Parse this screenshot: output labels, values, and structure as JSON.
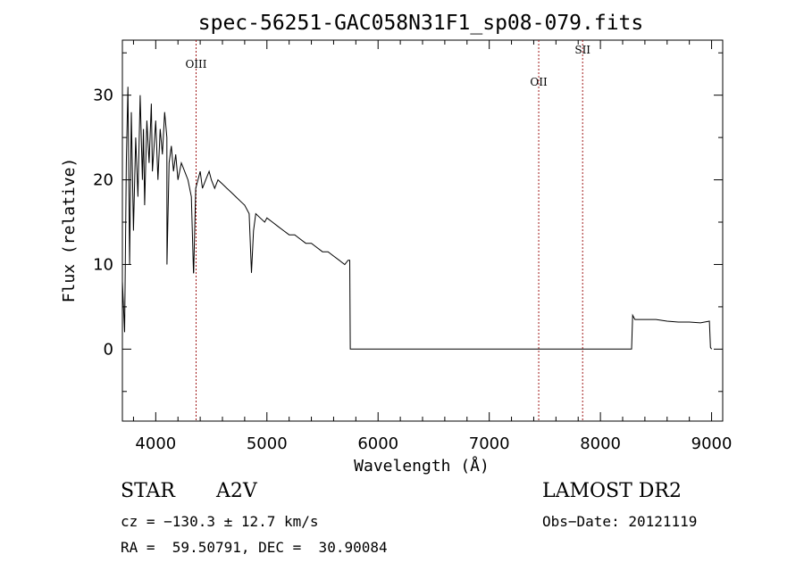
{
  "chart_data": {
    "type": "line",
    "title": "spec-56251-GAC058N31F1_sp08-079.fits",
    "xlabel": "Wavelength (Å)",
    "ylabel": "Flux (relative)",
    "xlim": [
      3700,
      9100
    ],
    "ylim": [
      -8.5,
      36.5
    ],
    "xticks": [
      4000,
      5000,
      6000,
      7000,
      8000,
      9000
    ],
    "yticks": [
      0,
      10,
      20,
      30
    ],
    "grid": false,
    "series": [
      {
        "x": [
          3700,
          3720,
          3735,
          3750,
          3765,
          3780,
          3800,
          3820,
          3840,
          3860,
          3880,
          3890,
          3900,
          3920,
          3940,
          3960,
          3970,
          3985,
          4000,
          4020,
          4040,
          4060,
          4080,
          4100,
          4101,
          4120,
          4140,
          4160,
          4180,
          4200,
          4230,
          4260,
          4290,
          4320,
          4340,
          4341,
          4360,
          4380,
          4400,
          4420,
          4450,
          4480,
          4500,
          4530,
          4560,
          4600,
          4640,
          4680,
          4720,
          4760,
          4800,
          4840,
          4861,
          4880,
          4900,
          4940,
          4980,
          5000,
          5050,
          5100,
          5150,
          5200,
          5250,
          5300,
          5350,
          5400,
          5450,
          5500,
          5550,
          5600,
          5650,
          5700,
          5730,
          5745,
          5750,
          6000,
          6500,
          7000,
          7200,
          7250,
          7400,
          7600,
          7800,
          8000,
          8200,
          8280,
          8290,
          8310,
          8400,
          8500,
          8600,
          8700,
          8800,
          8900,
          8980,
          8990,
          9000
        ],
        "y": [
          8,
          2,
          22,
          31,
          10,
          28,
          14,
          25,
          18,
          30,
          20,
          26,
          17,
          27,
          22,
          29,
          21,
          24,
          27,
          20,
          26,
          23,
          28,
          25,
          10,
          22,
          24,
          21,
          23,
          20,
          22,
          21,
          20,
          18,
          9,
          9,
          19,
          20,
          21,
          19,
          20,
          21,
          20,
          19,
          20,
          19.5,
          19,
          18.5,
          18,
          17.5,
          17,
          16,
          9,
          14,
          16,
          15.5,
          15,
          15.5,
          15,
          14.5,
          14,
          13.5,
          13.5,
          13,
          12.5,
          12.5,
          12,
          11.5,
          11.5,
          11,
          10.5,
          10,
          10.5,
          10.5,
          0,
          0,
          0,
          0,
          0,
          0,
          0,
          0,
          0,
          0,
          0,
          0,
          4,
          3.5,
          3.5,
          3.5,
          3.3,
          3.2,
          3.2,
          3.1,
          3.3,
          0.2,
          0
        ]
      }
    ],
    "lines": [
      {
        "label": "OIII",
        "x": 4363
      },
      {
        "label": "OII",
        "x": 7445
      },
      {
        "label": "SII",
        "x": 7840
      }
    ]
  },
  "info": {
    "class": "STAR",
    "subclass": "A2V",
    "survey": "LAMOST DR2",
    "cz": "cz = −130.3 ± 12.7 km/s",
    "obs_date": "Obs−Date: 20121119",
    "radec": "RA =  59.50791, DEC =  30.90084"
  }
}
